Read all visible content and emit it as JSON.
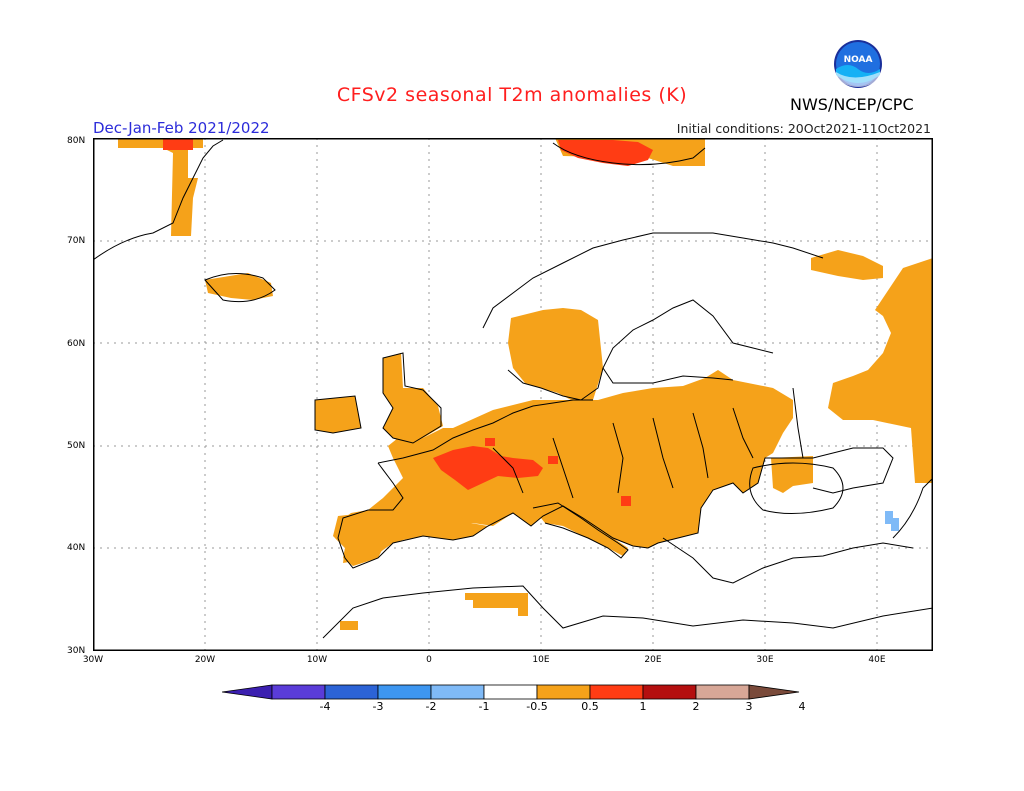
{
  "header": {
    "title": "CFSv2 seasonal T2m anomalies (K)",
    "season": "Dec-Jan-Feb 2021/2022",
    "initial_conditions": "Initial conditions: 20Oct2021-11Oct2021",
    "agency": "NWS/NCEP/CPC",
    "logo_text": "NOAA"
  },
  "map": {
    "region": "Europe",
    "lon_ticks": [
      "30W",
      "20W",
      "10W",
      "0",
      "10E",
      "20E",
      "30E",
      "40E"
    ],
    "lat_ticks": [
      "80N",
      "70N",
      "60N",
      "50N",
      "40N",
      "30N"
    ],
    "lon_range": [
      -30,
      45
    ],
    "lat_range": [
      30,
      80
    ],
    "grid": true
  },
  "legend": {
    "colors": [
      "#3b1fb0",
      "#5a3cd8",
      "#2c63d6",
      "#3d96f0",
      "#7fbaf7",
      "#ffffff",
      "#f5a21a",
      "#ff3c14",
      "#b40f0f",
      "#d7a797",
      "#7a4a3a"
    ],
    "labels": [
      "-4",
      "-3",
      "-2",
      "-1",
      "-0.5",
      "0.5",
      "1",
      "2",
      "3",
      "4"
    ]
  },
  "colors": {
    "anomaly_0_5_to_1": "#f5a21a",
    "anomaly_1_to_2": "#ff3c14",
    "anomaly_neg_0_5_to_neg_1": "#7fbaf7",
    "title_red": "#ff1e1e",
    "season_blue": "#2b2bd9"
  }
}
